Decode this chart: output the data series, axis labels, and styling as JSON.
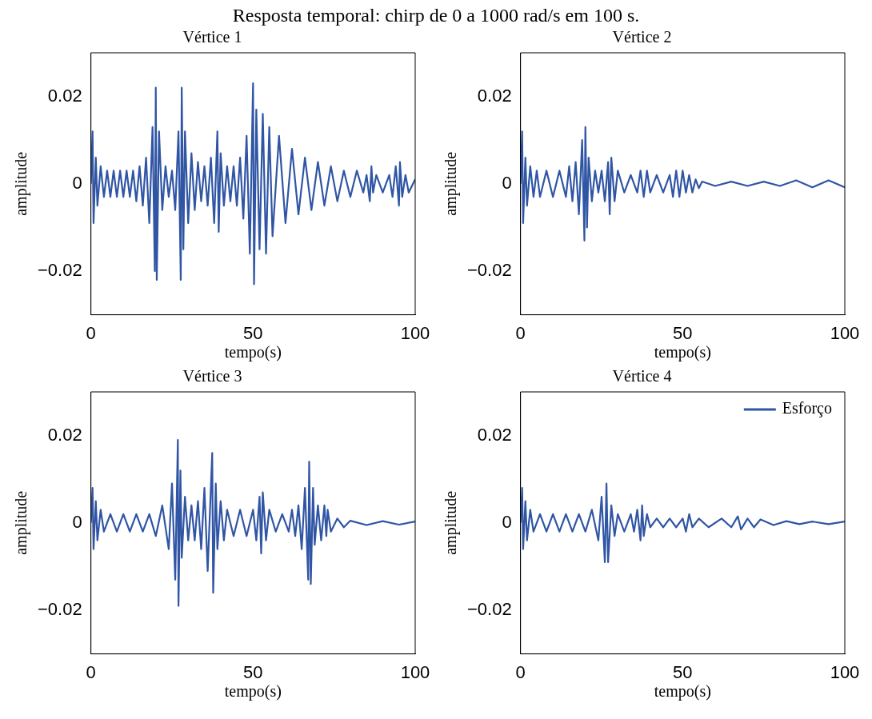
{
  "chart_data": [
    {
      "type": "line",
      "title": "Vértice 1",
      "xlabel": "tempo(s)",
      "ylabel": "amplitude",
      "annotations": [
        "Resposta temporal: chirp de 0 a 1000 rad/s em 100 s."
      ],
      "xlim": [
        0,
        100
      ],
      "xticks": [
        0,
        50,
        100
      ],
      "ylim": [
        -0.03,
        0.03
      ],
      "yticks": [
        -0.02,
        0,
        0.02
      ],
      "grid": false,
      "legend": false,
      "marker": "none",
      "line_style": "solid",
      "series": [
        {
          "color": "#2f55a4",
          "x": [
            0,
            0.5,
            0.8,
            1.5,
            2,
            3,
            4,
            5,
            6,
            7,
            8,
            9,
            10,
            11,
            12,
            13,
            14,
            15,
            16,
            17,
            18,
            19,
            19.7,
            20,
            20.3,
            21,
            22,
            23,
            24,
            25,
            26,
            27,
            27.7,
            28,
            28.5,
            29,
            30,
            31,
            32,
            33,
            34,
            35,
            36,
            37,
            38,
            39,
            39.4,
            40,
            41,
            42,
            43,
            44,
            45,
            46,
            47,
            48,
            49,
            50,
            50.3,
            51,
            52,
            53,
            54,
            55,
            56,
            58,
            60,
            62,
            64,
            66,
            68,
            70,
            72,
            74,
            76,
            78,
            80,
            82,
            84,
            85,
            86,
            86.5,
            87,
            88,
            90,
            92,
            93,
            94,
            95,
            95.3,
            96,
            97,
            98,
            100
          ],
          "values": [
            0,
            0.012,
            -0.009,
            0.006,
            -0.005,
            0.004,
            -0.003,
            0.003,
            -0.003,
            0.003,
            -0.003,
            0.003,
            -0.003,
            0.003,
            -0.003,
            0.003,
            -0.004,
            0.004,
            -0.005,
            0.006,
            -0.009,
            0.013,
            -0.02,
            0.022,
            -0.022,
            0.012,
            -0.006,
            0.004,
            -0.003,
            0.003,
            -0.006,
            0.012,
            -0.022,
            0.022,
            -0.015,
            0.012,
            -0.009,
            0.007,
            -0.006,
            0.005,
            -0.004,
            0.004,
            -0.005,
            0.006,
            -0.009,
            0.012,
            -0.011,
            0.007,
            -0.005,
            0.004,
            -0.004,
            0.004,
            -0.005,
            0.006,
            -0.008,
            0.011,
            -0.016,
            0.023,
            -0.023,
            0.017,
            -0.015,
            0.016,
            -0.016,
            0.013,
            -0.012,
            0.011,
            -0.009,
            0.008,
            -0.007,
            0.006,
            -0.006,
            0.005,
            -0.005,
            0.004,
            -0.004,
            0.003,
            -0.003,
            0.003,
            -0.002,
            0.002,
            -0.004,
            0.004,
            -0.002,
            0.002,
            -0.002,
            0.002,
            -0.003,
            0.004,
            -0.005,
            0.005,
            -0.003,
            0.002,
            -0.002,
            0.001
          ]
        }
      ]
    },
    {
      "type": "line",
      "title": "Vértice 2",
      "xlabel": "tempo(s)",
      "ylabel": "amplitude",
      "xlim": [
        0,
        100
      ],
      "xticks": [
        0,
        50,
        100
      ],
      "ylim": [
        -0.03,
        0.03
      ],
      "yticks": [
        -0.02,
        0,
        0.02
      ],
      "grid": false,
      "legend": false,
      "marker": "none",
      "line_style": "solid",
      "series": [
        {
          "color": "#2f55a4",
          "x": [
            0,
            0.5,
            0.8,
            1.5,
            2,
            3,
            4,
            5,
            6,
            8,
            10,
            12,
            14,
            15,
            16,
            17,
            18,
            19,
            19.7,
            20,
            20.5,
            21,
            22,
            23,
            24,
            25,
            26,
            27,
            27.5,
            28,
            29,
            30,
            32,
            34,
            36,
            37,
            38,
            39,
            40,
            42,
            44,
            46,
            47,
            48,
            49,
            50,
            51,
            52,
            53,
            54,
            55,
            56,
            60,
            65,
            70,
            75,
            80,
            85,
            90,
            95,
            100
          ],
          "values": [
            0,
            0.012,
            -0.009,
            0.006,
            -0.005,
            0.004,
            -0.003,
            0.003,
            -0.003,
            0.003,
            -0.003,
            0.003,
            -0.003,
            0.004,
            -0.004,
            0.005,
            -0.007,
            0.01,
            -0.013,
            0.013,
            -0.01,
            0.006,
            -0.004,
            0.003,
            -0.002,
            0.003,
            -0.004,
            0.005,
            -0.007,
            0.006,
            -0.004,
            0.003,
            -0.002,
            0.002,
            -0.002,
            0.003,
            -0.003,
            0.003,
            -0.002,
            0.002,
            -0.002,
            0.002,
            -0.003,
            0.003,
            -0.003,
            0.003,
            -0.002,
            0.002,
            -0.002,
            0.001,
            -0.001,
            0.0005,
            -0.0005,
            0.0005,
            -0.0005,
            0.0005,
            -0.0005,
            0.0008,
            -0.0008,
            0.0008,
            -0.0008
          ]
        }
      ]
    },
    {
      "type": "line",
      "title": "Vértice 3",
      "xlabel": "tempo(s)",
      "ylabel": "amplitude",
      "xlim": [
        0,
        100
      ],
      "xticks": [
        0,
        50,
        100
      ],
      "ylim": [
        -0.03,
        0.03
      ],
      "yticks": [
        -0.02,
        0,
        0.02
      ],
      "grid": false,
      "legend": false,
      "marker": "none",
      "line_style": "solid",
      "series": [
        {
          "color": "#2f55a4",
          "x": [
            0,
            0.5,
            0.8,
            1.5,
            2,
            3,
            4,
            6,
            8,
            10,
            12,
            14,
            16,
            18,
            20,
            22,
            24,
            25,
            26,
            26.8,
            27,
            27.6,
            28,
            29,
            30,
            31,
            32,
            33,
            34,
            35,
            36,
            37.4,
            37.7,
            38.5,
            39,
            40,
            41,
            42,
            44,
            46,
            48,
            50,
            51,
            52,
            52.5,
            53,
            54,
            55,
            57,
            59,
            61,
            62,
            63,
            64,
            65,
            66,
            67,
            67.3,
            67.8,
            68.5,
            69,
            70,
            71,
            72,
            72.6,
            73,
            74,
            76,
            78,
            80,
            85,
            90,
            95,
            100
          ],
          "values": [
            0,
            0.008,
            -0.006,
            0.005,
            -0.004,
            0.003,
            -0.002,
            0.002,
            -0.002,
            0.002,
            -0.002,
            0.002,
            -0.002,
            0.002,
            -0.003,
            0.004,
            -0.006,
            0.009,
            -0.013,
            0.019,
            -0.019,
            0.012,
            -0.008,
            0.006,
            -0.004,
            0.004,
            -0.004,
            0.005,
            -0.006,
            0.008,
            -0.011,
            0.016,
            -0.016,
            0.009,
            -0.006,
            0.005,
            -0.004,
            0.003,
            -0.003,
            0.003,
            -0.003,
            0.003,
            -0.004,
            0.006,
            -0.007,
            0.007,
            -0.004,
            0.003,
            -0.002,
            0.002,
            -0.002,
            0.003,
            -0.003,
            0.004,
            -0.006,
            0.008,
            -0.013,
            0.014,
            -0.014,
            0.008,
            -0.005,
            0.004,
            -0.004,
            0.004,
            -0.003,
            0.003,
            -0.002,
            0.001,
            -0.001,
            0.0005,
            -0.0005,
            0.0004,
            -0.0004,
            0.0003
          ]
        }
      ]
    },
    {
      "type": "line",
      "title": "Vértice 4",
      "xlabel": "tempo(s)",
      "ylabel": "amplitude",
      "xlim": [
        0,
        100
      ],
      "xticks": [
        0,
        50,
        100
      ],
      "ylim": [
        -0.03,
        0.03
      ],
      "yticks": [
        -0.02,
        0,
        0.02
      ],
      "grid": false,
      "legend": "top right",
      "marker": "none",
      "line_style": "solid",
      "series": [
        {
          "name": "Esforço",
          "color": "#2f55a4",
          "x": [
            0,
            0.5,
            0.8,
            1.5,
            2,
            3,
            4,
            6,
            8,
            10,
            12,
            14,
            16,
            18,
            20,
            22,
            24,
            25,
            26,
            26.5,
            27,
            28,
            29,
            30,
            32,
            34,
            35,
            36,
            37,
            37.5,
            38,
            39,
            40,
            42,
            44,
            46,
            48,
            50,
            51,
            52,
            53,
            55,
            58,
            62,
            65,
            67,
            68,
            70,
            72,
            74,
            78,
            82,
            86,
            90,
            95,
            100
          ],
          "values": [
            0,
            0.008,
            -0.006,
            0.005,
            -0.004,
            0.003,
            -0.002,
            0.002,
            -0.002,
            0.002,
            -0.002,
            0.002,
            -0.002,
            0.002,
            -0.002,
            0.003,
            -0.004,
            0.006,
            -0.009,
            0.009,
            -0.009,
            0.004,
            -0.003,
            0.002,
            -0.002,
            0.002,
            -0.002,
            0.003,
            -0.004,
            0.004,
            -0.003,
            0.002,
            -0.001,
            0.001,
            -0.001,
            0.001,
            -0.001,
            0.001,
            -0.002,
            0.002,
            -0.001,
            0.001,
            -0.001,
            0.001,
            -0.001,
            0.0015,
            -0.0015,
            0.001,
            -0.001,
            0.0008,
            -0.0005,
            0.0004,
            -0.0003,
            0.0003,
            -0.0003,
            0.0003
          ]
        }
      ]
    }
  ]
}
